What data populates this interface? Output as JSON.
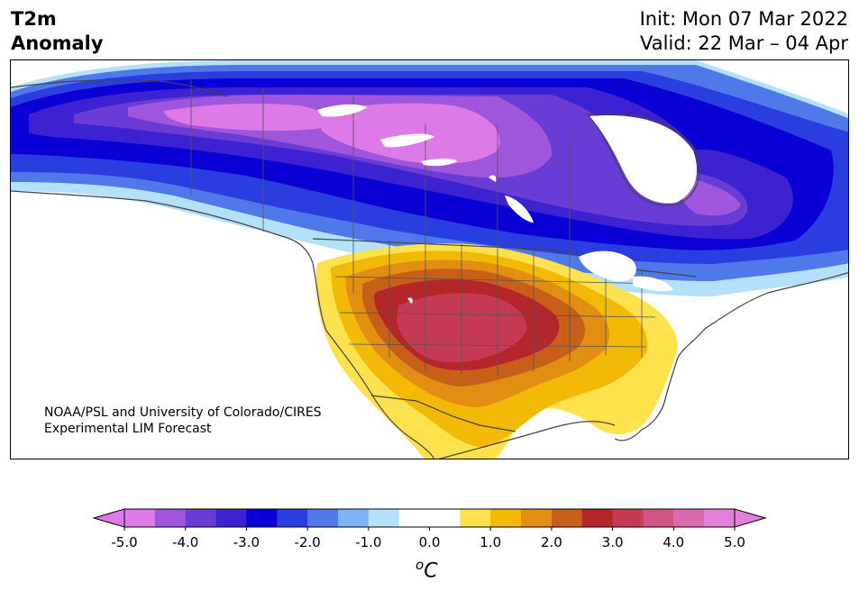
{
  "title": {
    "line1": "T2m",
    "line2": "Anomaly"
  },
  "init": {
    "line1": "Init: Mon 07 Mar 2022",
    "line2": "Valid: 22 Mar – 04 Apr"
  },
  "credit": {
    "line1": "NOAA/PSL and University of Colorado/CIRES",
    "line2": "Experimental LIM Forecast"
  },
  "colorbar": {
    "unit_super": "o",
    "unit_main": "C",
    "ticks": [
      "-5.0",
      "-4.0",
      "-3.0",
      "-2.0",
      "-1.0",
      "0.0",
      "1.0",
      "2.0",
      "3.0",
      "4.0",
      "5.0"
    ],
    "colors": [
      "#dd7ae8",
      "#a055dd",
      "#6a3cd6",
      "#3c22d0",
      "#0a00d6",
      "#2a3ee0",
      "#4f78e8",
      "#7cb3f3",
      "#b3e0fb",
      "#ffffff",
      "#ffffff",
      "#fde24e",
      "#f2b907",
      "#e18e12",
      "#c85f18",
      "#b5262b",
      "#c43b53",
      "#d05584",
      "#dc6ab0",
      "#e480d8"
    ],
    "extend_low": "#dd7ae8",
    "extend_high": "#e480d8"
  },
  "map": {
    "region": "North America",
    "palette": {
      "cool_1": "#b3e0fb",
      "cool_2": "#7cb3f3",
      "cool_3": "#4f78e8",
      "cool_4": "#2a3ee0",
      "cool_5": "#0a00d6",
      "cool_6": "#3c22d0",
      "cool_7": "#6a3cd6",
      "cool_8": "#a055dd",
      "cool_9": "#dd7ae8",
      "warm_1": "#fde24e",
      "warm_2": "#f2b907",
      "warm_3": "#e18e12",
      "warm_4": "#c85f18",
      "warm_5": "#b5262b",
      "warm_6": "#c43b53",
      "border": "#444444"
    }
  }
}
